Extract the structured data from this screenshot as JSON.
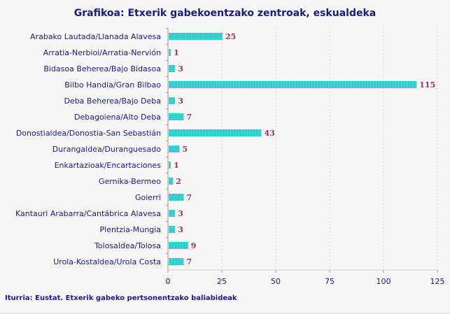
{
  "chart_data": {
    "type": "bar",
    "orientation": "horizontal",
    "title": "Grafikoa: Etxerik gabekoentzako zentroak, eskualdeka",
    "source": "Iturria: Eustat. Etxerik gabeko pertsonentzako baliabideak",
    "categories": [
      "Arabako Lautada/Llanada Alavesa",
      "Arratia-Nerbioi/Arratia-Nervión",
      "Bidasoa Beherea/Bajo Bidasoa",
      "Bilbo Handia/Gran Bilbao",
      "Deba Beherea/Bajo Deba",
      "Debagoiena/Alto Deba",
      "Donostialdea/Donostia-San Sebastián",
      "Durangaldea/Duranguesado",
      "Enkartazioak/Encartaciones",
      "Gernika-Bermeo",
      "Goierri",
      "Kantauri Arabarra/Cantábrica Alavesa",
      "Plentzia-Mungia",
      "Tolosaldea/Tolosa",
      "Urola-Kostaldea/Urola Costa"
    ],
    "values": [
      25,
      1,
      3,
      115,
      3,
      7,
      43,
      5,
      1,
      2,
      7,
      3,
      3,
      9,
      7
    ],
    "xlim": [
      0,
      125
    ],
    "xticks": [
      0,
      25,
      50,
      75,
      100,
      125
    ],
    "grid": true,
    "colors": {
      "bar": "#33cccc",
      "value_label": "#993366",
      "text": "#1a1a80",
      "background": "#f7f7f7"
    }
  }
}
